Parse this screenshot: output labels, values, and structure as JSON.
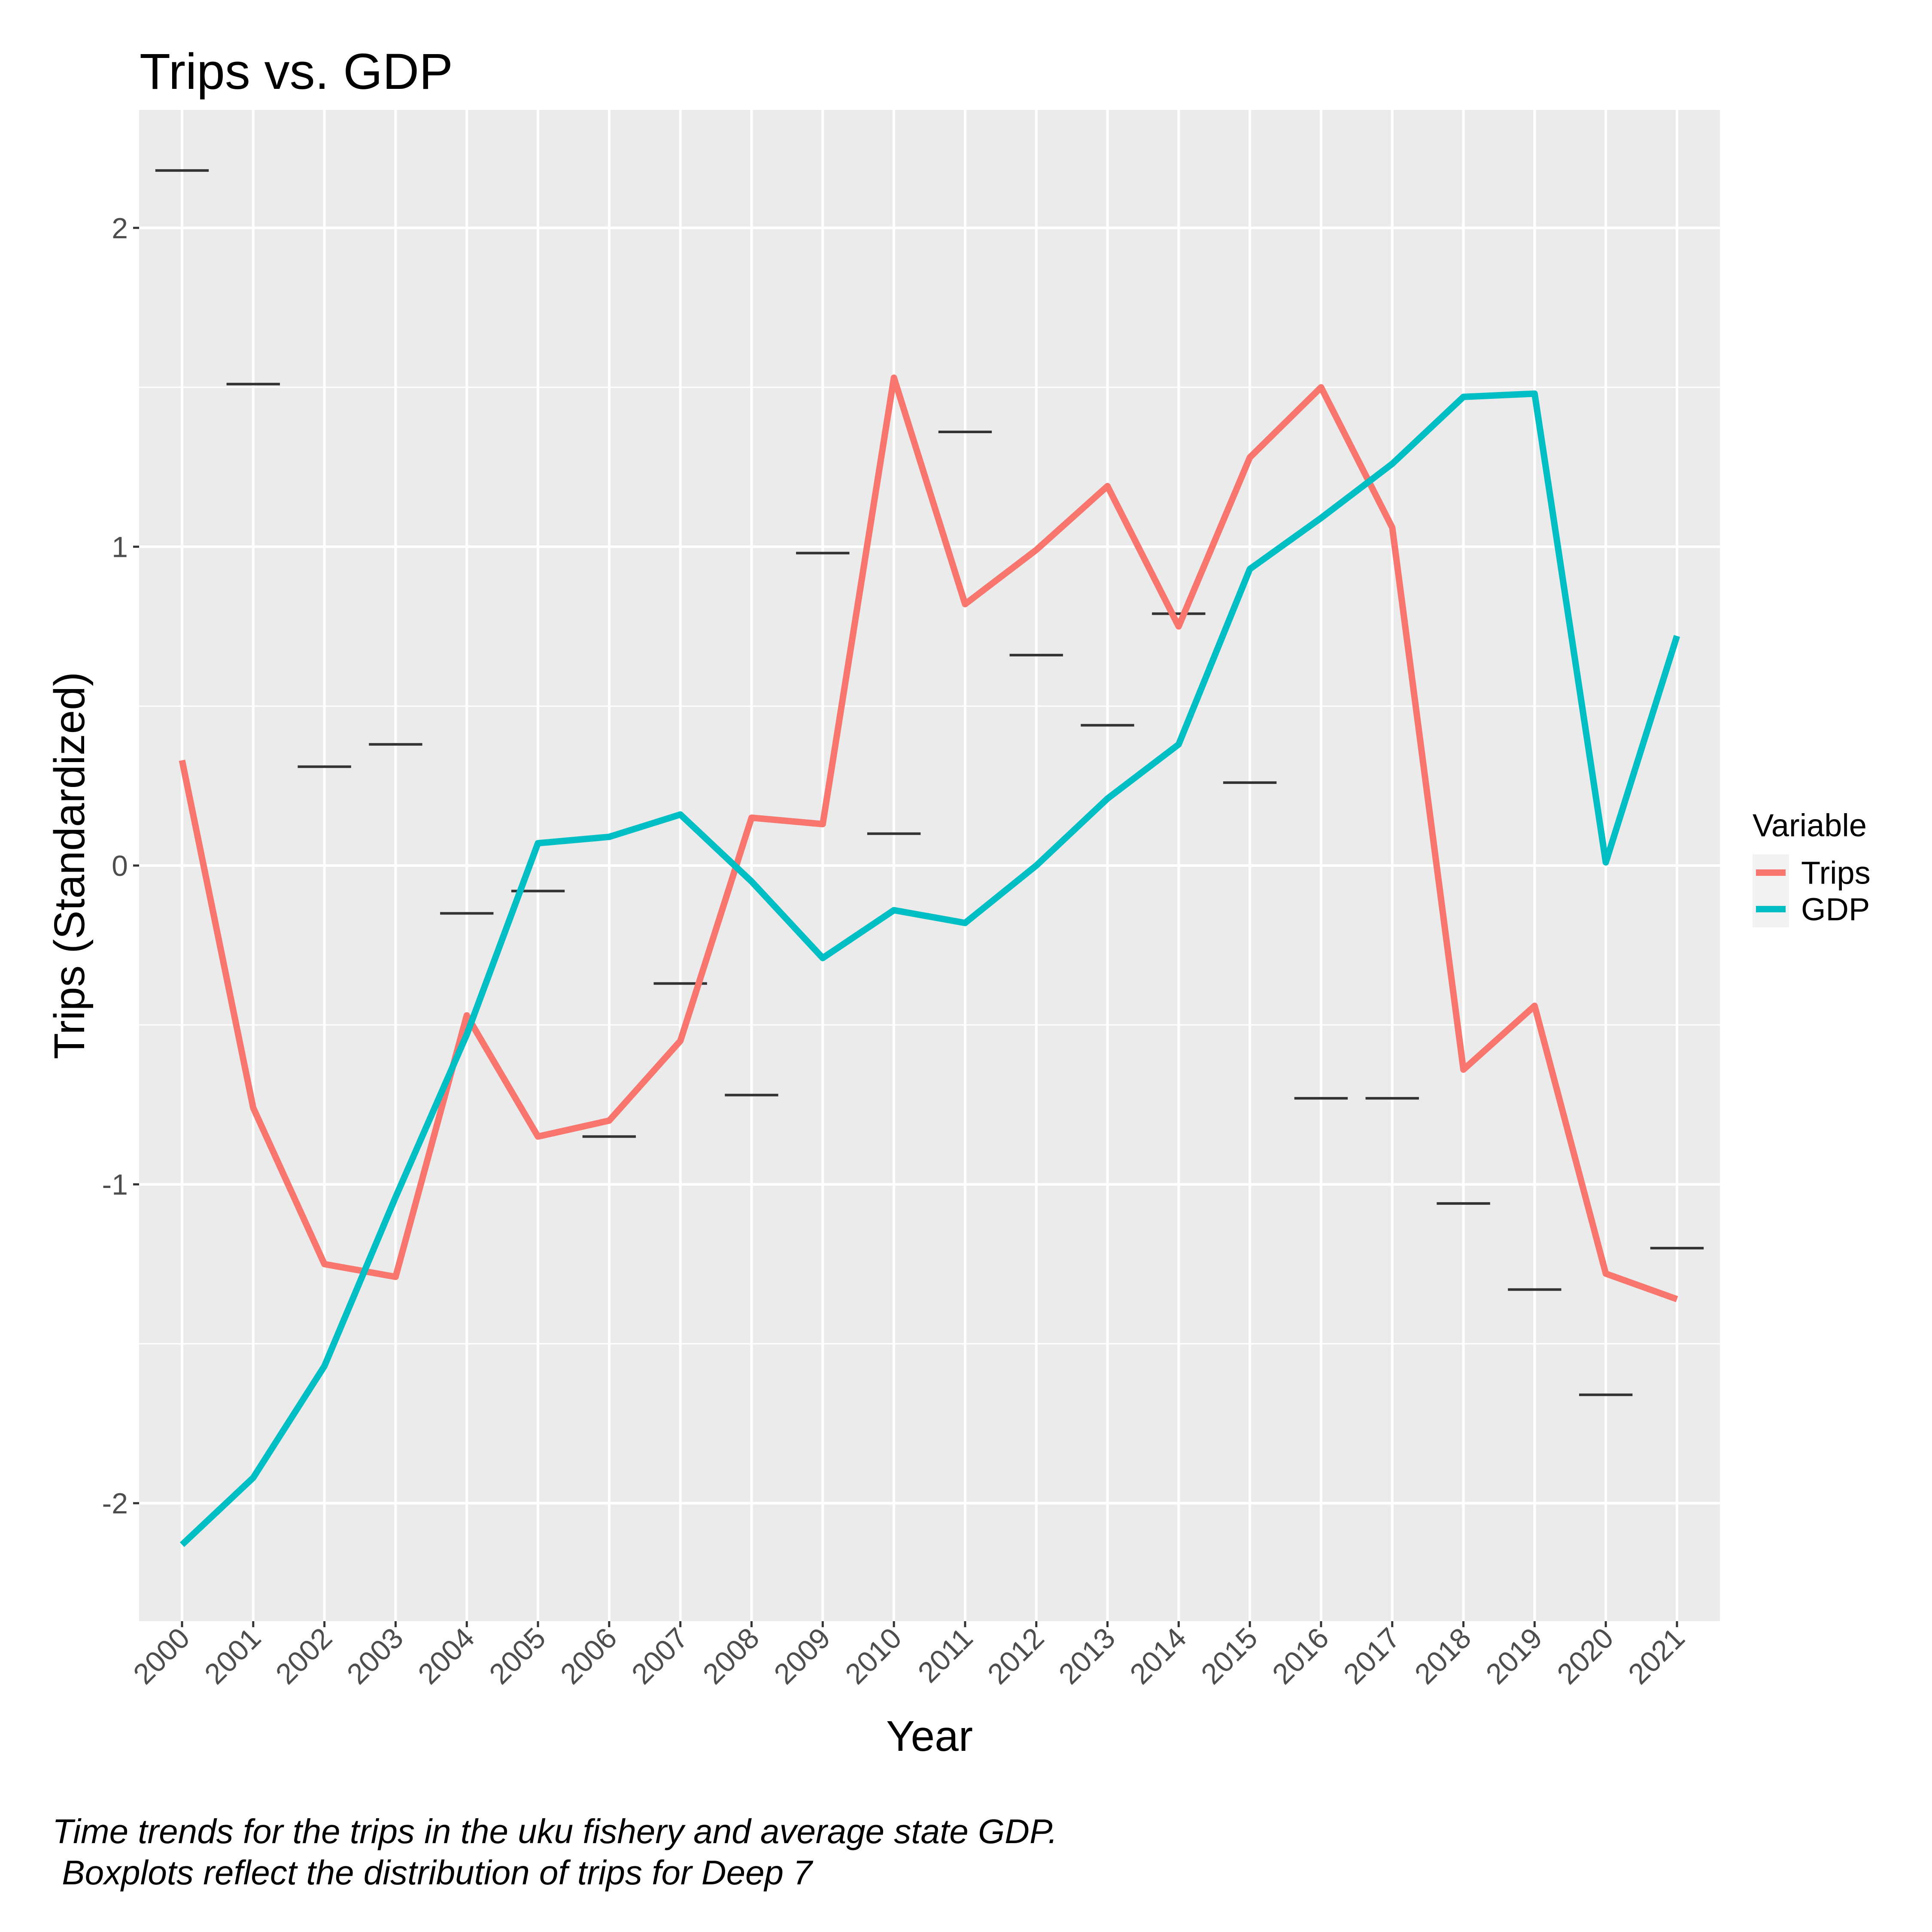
{
  "chart_data": {
    "type": "line",
    "title": "Trips vs. GDP",
    "xlabel": "Year",
    "ylabel": "Trips (Standardized)",
    "x": [
      "2000",
      "2001",
      "2002",
      "2003",
      "2004",
      "2005",
      "2006",
      "2007",
      "2008",
      "2009",
      "2010",
      "2011",
      "2012",
      "2013",
      "2014",
      "2015",
      "2016",
      "2017",
      "2018",
      "2019",
      "2020",
      "2021"
    ],
    "yticks": [
      "-2",
      "-1",
      "0",
      "1",
      "2"
    ],
    "ylim": [
      -2.37,
      2.37
    ],
    "grid": true,
    "legend": {
      "title": "Variable",
      "position": "right",
      "entries": [
        "Trips",
        "GDP"
      ]
    },
    "series": [
      {
        "name": "Trips",
        "color": "#F8766D",
        "values": [
          0.33,
          -0.76,
          -1.25,
          -1.29,
          -0.47,
          -0.85,
          -0.8,
          -0.55,
          0.15,
          0.13,
          1.53,
          0.82,
          0.99,
          1.19,
          0.75,
          1.28,
          1.5,
          1.06,
          -0.64,
          -0.44,
          -1.28,
          -1.36
        ]
      },
      {
        "name": "GDP",
        "color": "#00BFC4",
        "values": [
          -2.13,
          -1.92,
          -1.57,
          -1.04,
          -0.53,
          0.07,
          0.09,
          0.16,
          -0.05,
          -0.29,
          -0.14,
          -0.18,
          0.0,
          0.21,
          0.38,
          0.93,
          1.09,
          1.26,
          1.47,
          1.48,
          0.01,
          0.72
        ]
      }
    ],
    "boxplot_medians": [
      2.18,
      1.51,
      0.31,
      0.38,
      -0.15,
      -0.08,
      -0.85,
      -0.37,
      -0.72,
      0.98,
      0.1,
      1.36,
      0.66,
      0.44,
      0.79,
      0.26,
      -0.73,
      -0.73,
      -1.06,
      -1.33,
      -1.66,
      -1.2
    ]
  },
  "caption": "Time trends for the trips in the uku fishery and average state GDP.\n Boxplots reflect the distribution of trips for Deep 7"
}
